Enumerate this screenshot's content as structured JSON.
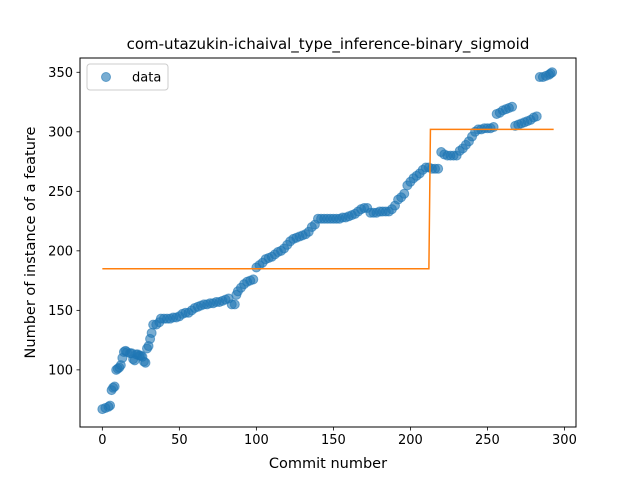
{
  "chart_data": {
    "type": "scatter",
    "title": "com-utazukin-ichaival_type_inference-binary_sigmoid",
    "xlabel": "Commit number",
    "ylabel": "Number of instance of a feature",
    "xlim": [
      -14.5,
      307.5
    ],
    "ylim": [
      52,
      362
    ],
    "xticks": [
      0,
      50,
      100,
      150,
      200,
      250,
      300
    ],
    "yticks": [
      100,
      150,
      200,
      250,
      300,
      350
    ],
    "xtick_labels": [
      "0",
      "50",
      "100",
      "150",
      "200",
      "250",
      "300"
    ],
    "ytick_labels": [
      "100",
      "150",
      "200",
      "250",
      "300",
      "350"
    ],
    "grid": false,
    "legend": {
      "position": "top-left",
      "entries": [
        "data"
      ]
    },
    "colors": {
      "data": "#1f77b4",
      "fit": "#ff7f0e"
    },
    "series": [
      {
        "name": "data",
        "marker": "circle",
        "points": [
          [
            0,
            67
          ],
          [
            2,
            68
          ],
          [
            4,
            69
          ],
          [
            5,
            70
          ],
          [
            6,
            83
          ],
          [
            7,
            85
          ],
          [
            8,
            86
          ],
          [
            9,
            100
          ],
          [
            10,
            101
          ],
          [
            11,
            102
          ],
          [
            12,
            104
          ],
          [
            13,
            110
          ],
          [
            14,
            115
          ],
          [
            15,
            116
          ],
          [
            16,
            115
          ],
          [
            18,
            114
          ],
          [
            19,
            114
          ],
          [
            20,
            109
          ],
          [
            21,
            108
          ],
          [
            22,
            113
          ],
          [
            23,
            113
          ],
          [
            24,
            112
          ],
          [
            25,
            112
          ],
          [
            26,
            111
          ],
          [
            27,
            107
          ],
          [
            28,
            106
          ],
          [
            29,
            118
          ],
          [
            30,
            120
          ],
          [
            31,
            126
          ],
          [
            32,
            131
          ],
          [
            33,
            138
          ],
          [
            35,
            138
          ],
          [
            37,
            140
          ],
          [
            38,
            143
          ],
          [
            40,
            143
          ],
          [
            42,
            143
          ],
          [
            44,
            143
          ],
          [
            46,
            144
          ],
          [
            48,
            144
          ],
          [
            50,
            145
          ],
          [
            52,
            147
          ],
          [
            54,
            148
          ],
          [
            56,
            148
          ],
          [
            58,
            150
          ],
          [
            60,
            152
          ],
          [
            62,
            153
          ],
          [
            64,
            154
          ],
          [
            66,
            155
          ],
          [
            68,
            155
          ],
          [
            70,
            156
          ],
          [
            72,
            156
          ],
          [
            74,
            157
          ],
          [
            76,
            157
          ],
          [
            78,
            158
          ],
          [
            80,
            159
          ],
          [
            82,
            160
          ],
          [
            84,
            155
          ],
          [
            86,
            155
          ],
          [
            87,
            163
          ],
          [
            88,
            166
          ],
          [
            90,
            169
          ],
          [
            92,
            172
          ],
          [
            94,
            174
          ],
          [
            96,
            175
          ],
          [
            98,
            176
          ],
          [
            100,
            186
          ],
          [
            102,
            188
          ],
          [
            104,
            190
          ],
          [
            106,
            193
          ],
          [
            108,
            194
          ],
          [
            110,
            195
          ],
          [
            112,
            197
          ],
          [
            114,
            199
          ],
          [
            116,
            200
          ],
          [
            118,
            202
          ],
          [
            120,
            205
          ],
          [
            122,
            208
          ],
          [
            124,
            210
          ],
          [
            126,
            211
          ],
          [
            128,
            212
          ],
          [
            130,
            213
          ],
          [
            132,
            214
          ],
          [
            134,
            216
          ],
          [
            136,
            220
          ],
          [
            138,
            222
          ],
          [
            140,
            227
          ],
          [
            142,
            227
          ],
          [
            144,
            227
          ],
          [
            146,
            227
          ],
          [
            148,
            227
          ],
          [
            150,
            227
          ],
          [
            152,
            227
          ],
          [
            154,
            227
          ],
          [
            156,
            228
          ],
          [
            158,
            228
          ],
          [
            160,
            229
          ],
          [
            162,
            230
          ],
          [
            164,
            231
          ],
          [
            166,
            233
          ],
          [
            168,
            235
          ],
          [
            170,
            236
          ],
          [
            172,
            236
          ],
          [
            174,
            232
          ],
          [
            176,
            232
          ],
          [
            178,
            232
          ],
          [
            180,
            233
          ],
          [
            182,
            233
          ],
          [
            184,
            233
          ],
          [
            186,
            233
          ],
          [
            188,
            235
          ],
          [
            190,
            238
          ],
          [
            192,
            243
          ],
          [
            194,
            245
          ],
          [
            196,
            248
          ],
          [
            198,
            255
          ],
          [
            200,
            258
          ],
          [
            202,
            261
          ],
          [
            204,
            263
          ],
          [
            206,
            265
          ],
          [
            208,
            268
          ],
          [
            210,
            270
          ],
          [
            212,
            270
          ],
          [
            214,
            269
          ],
          [
            216,
            269
          ],
          [
            218,
            269
          ],
          [
            220,
            283
          ],
          [
            222,
            281
          ],
          [
            224,
            280
          ],
          [
            226,
            280
          ],
          [
            228,
            280
          ],
          [
            230,
            280
          ],
          [
            232,
            284
          ],
          [
            234,
            286
          ],
          [
            236,
            289
          ],
          [
            238,
            292
          ],
          [
            240,
            296
          ],
          [
            242,
            300
          ],
          [
            244,
            302
          ],
          [
            246,
            302
          ],
          [
            248,
            303
          ],
          [
            250,
            303
          ],
          [
            252,
            303
          ],
          [
            254,
            304
          ],
          [
            256,
            315
          ],
          [
            258,
            316
          ],
          [
            260,
            318
          ],
          [
            262,
            319
          ],
          [
            264,
            320
          ],
          [
            266,
            321
          ],
          [
            268,
            305
          ],
          [
            270,
            306
          ],
          [
            272,
            307
          ],
          [
            274,
            308
          ],
          [
            276,
            309
          ],
          [
            278,
            310
          ],
          [
            280,
            312
          ],
          [
            282,
            313
          ],
          [
            284,
            346
          ],
          [
            286,
            346
          ],
          [
            288,
            347
          ],
          [
            290,
            348
          ],
          [
            291,
            349
          ],
          [
            292,
            350
          ]
        ]
      },
      {
        "name": "",
        "marker": "line",
        "points": [
          [
            0,
            185
          ],
          [
            212,
            185
          ],
          [
            213,
            302
          ],
          [
            293,
            302
          ]
        ]
      }
    ]
  }
}
